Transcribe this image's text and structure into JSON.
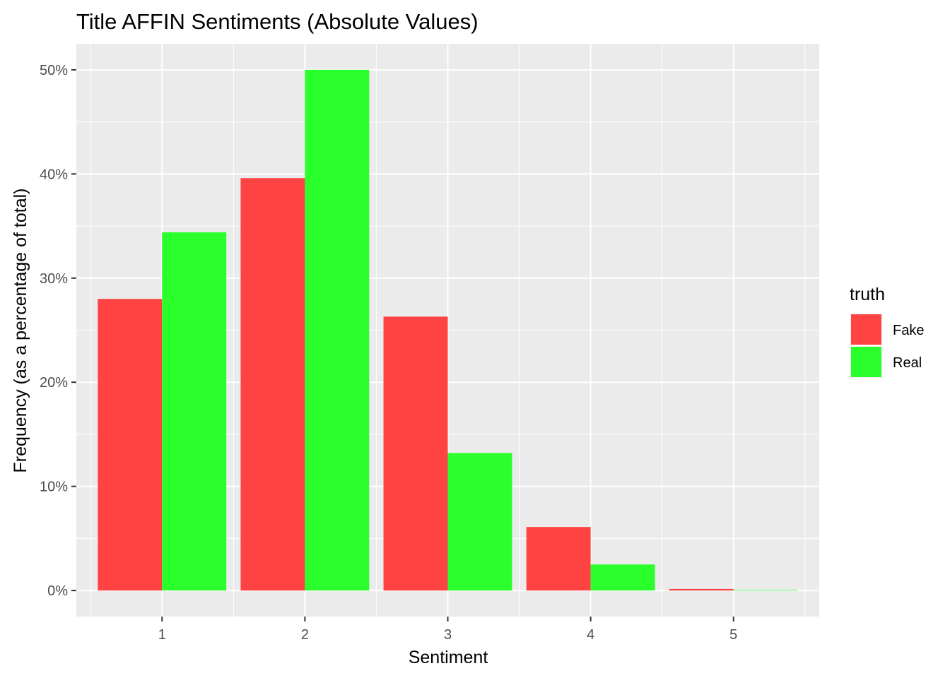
{
  "chart_data": {
    "type": "bar",
    "title": "Title AFFIN Sentiments (Absolute Values)",
    "xlabel": "Sentiment",
    "ylabel": "Frequency (as a percentage of total)",
    "categories": [
      "1",
      "2",
      "3",
      "4",
      "5"
    ],
    "series": [
      {
        "name": "Fake",
        "color": "#FF4343",
        "values": [
          28.0,
          39.6,
          26.3,
          6.1,
          0.15
        ]
      },
      {
        "name": "Real",
        "color": "#2BFF2B",
        "values": [
          34.4,
          50.0,
          13.2,
          2.5,
          0.05
        ]
      }
    ],
    "ylim": [
      -2.5,
      52.5
    ],
    "yticks": [
      0,
      10,
      20,
      30,
      40,
      50
    ],
    "ytick_labels": [
      "0%",
      "10%",
      "20%",
      "30%",
      "40%",
      "50%"
    ],
    "grid": true,
    "panel_background": "#EBEBEB",
    "legend": {
      "title": "truth",
      "placement": "right"
    }
  }
}
